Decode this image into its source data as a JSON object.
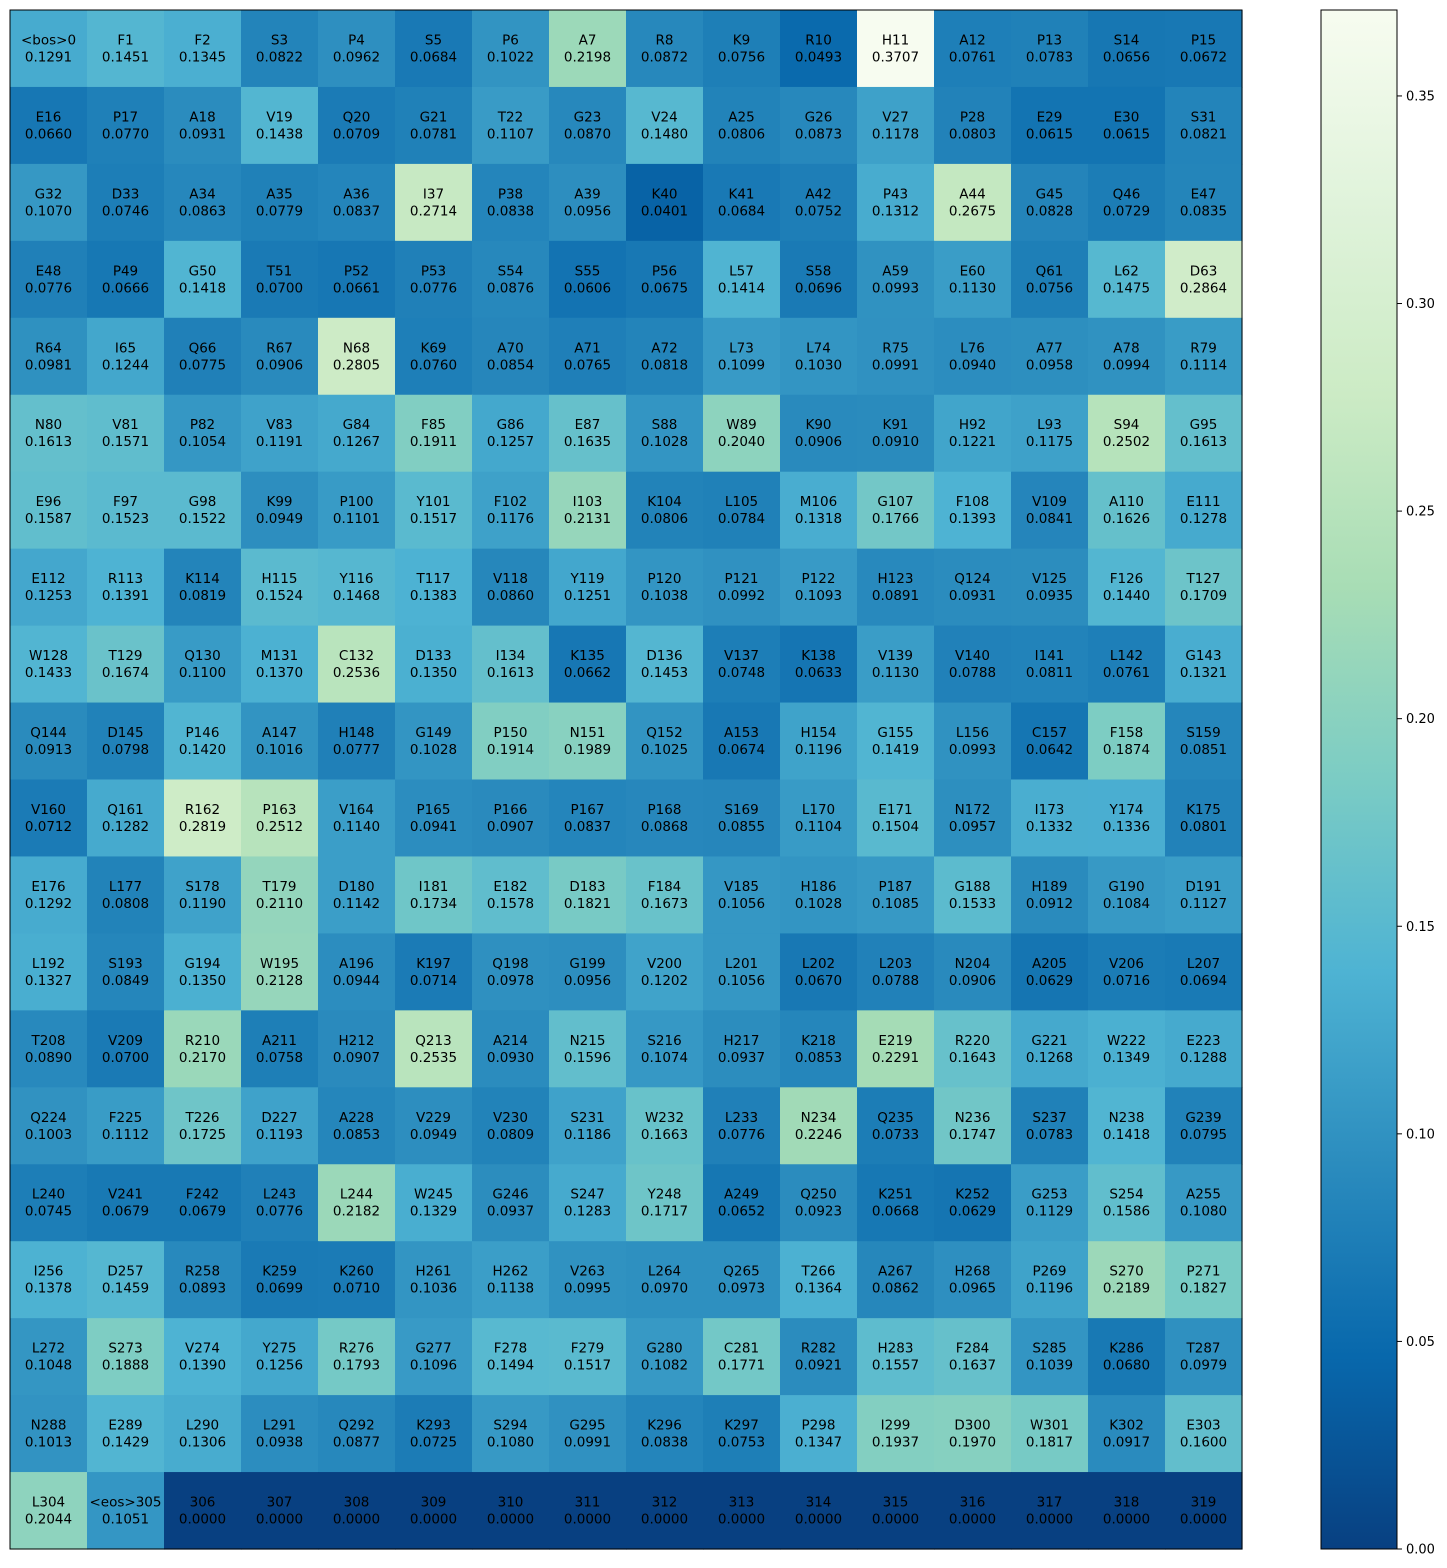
{
  "chart_data": {
    "type": "heatmap",
    "title": "",
    "xlabel": "",
    "ylabel": "",
    "colormap": "GnBu_r",
    "color_stops": [
      "#084081",
      "#0868ac",
      "#2b8cbe",
      "#4eb3d3",
      "#7bccc4",
      "#a8ddb5",
      "#ccebc5",
      "#e0f3db",
      "#f7fcf0"
    ],
    "value_range": [
      0,
      0.3707
    ],
    "grid_shape": [
      20,
      16
    ],
    "colorbar": {
      "ticks": [
        0.0,
        0.05,
        0.1,
        0.15,
        0.2,
        0.25,
        0.3,
        0.35
      ],
      "tick_labels": [
        "0.00",
        "0.05",
        "0.10",
        "0.15",
        "0.20",
        "0.25",
        "0.30",
        "0.35"
      ]
    },
    "labels": [
      "<bos>0",
      "F1",
      "F2",
      "S3",
      "P4",
      "S5",
      "P6",
      "A7",
      "R8",
      "K9",
      "R10",
      "H11",
      "A12",
      "P13",
      "S14",
      "P15",
      "E16",
      "P17",
      "A18",
      "V19",
      "Q20",
      "G21",
      "T22",
      "G23",
      "V24",
      "A25",
      "G26",
      "V27",
      "P28",
      "E29",
      "E30",
      "S31",
      "G32",
      "D33",
      "A34",
      "A35",
      "A36",
      "I37",
      "P38",
      "A39",
      "K40",
      "K41",
      "A42",
      "P43",
      "A44",
      "G45",
      "Q46",
      "E47",
      "E48",
      "P49",
      "G50",
      "T51",
      "P52",
      "P53",
      "S54",
      "S55",
      "P56",
      "L57",
      "S58",
      "A59",
      "E60",
      "Q61",
      "L62",
      "D63",
      "R64",
      "I65",
      "Q66",
      "R67",
      "N68",
      "K69",
      "A70",
      "A71",
      "A72",
      "L73",
      "L74",
      "R75",
      "L76",
      "A77",
      "A78",
      "R79",
      "N80",
      "V81",
      "P82",
      "V83",
      "G84",
      "F85",
      "G86",
      "E87",
      "S88",
      "W89",
      "K90",
      "K91",
      "H92",
      "L93",
      "S94",
      "G95",
      "E96",
      "F97",
      "G98",
      "K99",
      "P100",
      "Y101",
      "F102",
      "I103",
      "K104",
      "L105",
      "M106",
      "G107",
      "F108",
      "V109",
      "A110",
      "E111",
      "E112",
      "R113",
      "K114",
      "H115",
      "Y116",
      "T117",
      "V118",
      "Y119",
      "P120",
      "P121",
      "P122",
      "H123",
      "Q124",
      "V125",
      "F126",
      "T127",
      "W128",
      "T129",
      "Q130",
      "M131",
      "C132",
      "D133",
      "I134",
      "K135",
      "D136",
      "V137",
      "K138",
      "V139",
      "V140",
      "I141",
      "L142",
      "G143",
      "Q144",
      "D145",
      "P146",
      "A147",
      "H148",
      "G149",
      "P150",
      "N151",
      "Q152",
      "A153",
      "H154",
      "G155",
      "L156",
      "C157",
      "F158",
      "S159",
      "V160",
      "Q161",
      "R162",
      "P163",
      "V164",
      "P165",
      "P166",
      "P167",
      "P168",
      "S169",
      "L170",
      "E171",
      "N172",
      "I173",
      "Y174",
      "K175",
      "E176",
      "L177",
      "S178",
      "T179",
      "D180",
      "I181",
      "E182",
      "D183",
      "F184",
      "V185",
      "H186",
      "P187",
      "G188",
      "H189",
      "G190",
      "D191",
      "L192",
      "S193",
      "G194",
      "W195",
      "A196",
      "K197",
      "Q198",
      "G199",
      "V200",
      "L201",
      "L202",
      "L203",
      "N204",
      "A205",
      "V206",
      "L207",
      "T208",
      "V209",
      "R210",
      "A211",
      "H212",
      "Q213",
      "A214",
      "N215",
      "S216",
      "H217",
      "K218",
      "E219",
      "R220",
      "G221",
      "W222",
      "E223",
      "Q224",
      "F225",
      "T226",
      "D227",
      "A228",
      "V229",
      "V230",
      "S231",
      "W232",
      "L233",
      "N234",
      "Q235",
      "N236",
      "S237",
      "N238",
      "G239",
      "L240",
      "V241",
      "F242",
      "L243",
      "L244",
      "W245",
      "G246",
      "S247",
      "Y248",
      "A249",
      "Q250",
      "K251",
      "K252",
      "G253",
      "S254",
      "A255",
      "I256",
      "D257",
      "R258",
      "K259",
      "K260",
      "H261",
      "H262",
      "V263",
      "L264",
      "Q265",
      "T266",
      "A267",
      "H268",
      "P269",
      "S270",
      "P271",
      "L272",
      "S273",
      "V274",
      "Y275",
      "R276",
      "G277",
      "F278",
      "F279",
      "G280",
      "C281",
      "R282",
      "H283",
      "F284",
      "S285",
      "K286",
      "T287",
      "N288",
      "E289",
      "L290",
      "L291",
      "Q292",
      "K293",
      "S294",
      "G295",
      "K296",
      "K297",
      "P298",
      "I299",
      "D300",
      "W301",
      "K302",
      "E303",
      "L304",
      "<eos>305",
      "306",
      "307",
      "308",
      "309",
      "310",
      "311",
      "312",
      "313",
      "314",
      "315",
      "316",
      "317",
      "318",
      "319"
    ],
    "values": [
      0.1291,
      0.1451,
      0.1345,
      0.0822,
      0.0962,
      0.0684,
      0.1022,
      0.2198,
      0.0872,
      0.0756,
      0.0493,
      0.3707,
      0.0761,
      0.0783,
      0.0656,
      0.0672,
      0.066,
      0.077,
      0.0931,
      0.1438,
      0.0709,
      0.0781,
      0.1107,
      0.087,
      0.148,
      0.0806,
      0.0873,
      0.1178,
      0.0803,
      0.0615,
      0.0615,
      0.0821,
      0.107,
      0.0746,
      0.0863,
      0.0779,
      0.0837,
      0.2714,
      0.0838,
      0.0956,
      0.0401,
      0.0684,
      0.0752,
      0.1312,
      0.2675,
      0.0828,
      0.0729,
      0.0835,
      0.0776,
      0.0666,
      0.1418,
      0.07,
      0.0661,
      0.0776,
      0.0876,
      0.0606,
      0.0675,
      0.1414,
      0.0696,
      0.0993,
      0.113,
      0.0756,
      0.1475,
      0.2864,
      0.0981,
      0.1244,
      0.0775,
      0.0906,
      0.2805,
      0.076,
      0.0854,
      0.0765,
      0.0818,
      0.1099,
      0.103,
      0.0991,
      0.094,
      0.0958,
      0.0994,
      0.1114,
      0.1613,
      0.1571,
      0.1054,
      0.1191,
      0.1267,
      0.1911,
      0.1257,
      0.1635,
      0.1028,
      0.204,
      0.0906,
      0.091,
      0.1221,
      0.1175,
      0.2502,
      0.1613,
      0.1587,
      0.1523,
      0.1522,
      0.0949,
      0.1101,
      0.1517,
      0.1176,
      0.2131,
      0.0806,
      0.0784,
      0.1318,
      0.1766,
      0.1393,
      0.0841,
      0.1626,
      0.1278,
      0.1253,
      0.1391,
      0.0819,
      0.1524,
      0.1468,
      0.1383,
      0.086,
      0.1251,
      0.1038,
      0.0992,
      0.1093,
      0.0891,
      0.0931,
      0.0935,
      0.144,
      0.1709,
      0.1433,
      0.1674,
      0.11,
      0.137,
      0.2536,
      0.135,
      0.1613,
      0.0662,
      0.1453,
      0.0748,
      0.0633,
      0.113,
      0.0788,
      0.0811,
      0.0761,
      0.1321,
      0.0913,
      0.0798,
      0.142,
      0.1016,
      0.0777,
      0.1028,
      0.1914,
      0.1989,
      0.1025,
      0.0674,
      0.1196,
      0.1419,
      0.0993,
      0.0642,
      0.1874,
      0.0851,
      0.0712,
      0.1282,
      0.2819,
      0.2512,
      0.114,
      0.0941,
      0.0907,
      0.0837,
      0.0868,
      0.0855,
      0.1104,
      0.1504,
      0.0957,
      0.1332,
      0.1336,
      0.0801,
      0.1292,
      0.0808,
      0.119,
      0.211,
      0.1142,
      0.1734,
      0.1578,
      0.1821,
      0.1673,
      0.1056,
      0.1028,
      0.1085,
      0.1533,
      0.0912,
      0.1084,
      0.1127,
      0.1327,
      0.0849,
      0.135,
      0.2128,
      0.0944,
      0.0714,
      0.0978,
      0.0956,
      0.1202,
      0.1056,
      0.067,
      0.0788,
      0.0906,
      0.0629,
      0.0716,
      0.0694,
      0.089,
      0.07,
      0.217,
      0.0758,
      0.0907,
      0.2535,
      0.093,
      0.1596,
      0.1074,
      0.0937,
      0.0853,
      0.2291,
      0.1643,
      0.1268,
      0.1349,
      0.1288,
      0.1003,
      0.1112,
      0.1725,
      0.1193,
      0.0853,
      0.0949,
      0.0809,
      0.1186,
      0.1663,
      0.0776,
      0.2246,
      0.0733,
      0.1747,
      0.0783,
      0.1418,
      0.0795,
      0.0745,
      0.0679,
      0.0679,
      0.0776,
      0.2182,
      0.1329,
      0.0937,
      0.1283,
      0.1717,
      0.0652,
      0.0923,
      0.0668,
      0.0629,
      0.1129,
      0.1586,
      0.108,
      0.1378,
      0.1459,
      0.0893,
      0.0699,
      0.071,
      0.1036,
      0.1138,
      0.0995,
      0.097,
      0.0973,
      0.1364,
      0.0862,
      0.0965,
      0.1196,
      0.2189,
      0.1827,
      0.1048,
      0.1888,
      0.139,
      0.1256,
      0.1793,
      0.1096,
      0.1494,
      0.1517,
      0.1082,
      0.1771,
      0.0921,
      0.1557,
      0.1637,
      0.1039,
      0.068,
      0.0979,
      0.1013,
      0.1429,
      0.1306,
      0.0938,
      0.0877,
      0.0725,
      0.108,
      0.0991,
      0.0838,
      0.0753,
      0.1347,
      0.1937,
      0.197,
      0.1817,
      0.0917,
      0.16,
      0.2044,
      0.1051,
      0.0,
      0.0,
      0.0,
      0.0,
      0.0,
      0.0,
      0.0,
      0.0,
      0.0,
      0.0,
      0.0,
      0.0,
      0.0,
      0.0
    ]
  }
}
